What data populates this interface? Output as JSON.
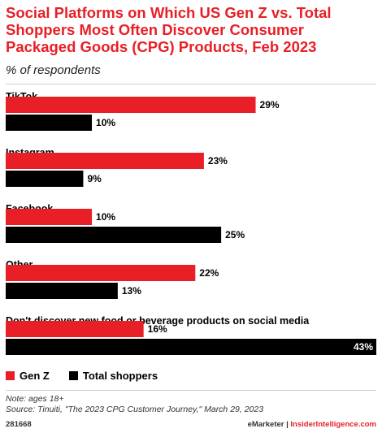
{
  "header": {
    "title": "Social Platforms on Which US Gen Z vs. Total Shoppers Most Often Discover Consumer Packaged Goods (CPG) Products, Feb 2023",
    "subtitle": "% of respondents"
  },
  "colors": {
    "gen_z": "#e81f26",
    "total": "#000000",
    "title": "#e81f26"
  },
  "chart_data": {
    "type": "bar",
    "orientation": "horizontal",
    "categories": [
      "TikTok",
      "Instagram",
      "Facebook",
      "Other",
      "Don't discover new food or beverage products on social media"
    ],
    "series": [
      {
        "name": "Gen Z",
        "values": [
          29,
          23,
          10,
          22,
          16
        ]
      },
      {
        "name": "Total shoppers",
        "values": [
          10,
          9,
          25,
          13,
          43
        ]
      }
    ],
    "value_suffix": "%",
    "xlim": [
      0,
      43
    ],
    "grid": false,
    "legend_position": "bottom-left"
  },
  "legend": {
    "gen_z_label": "Gen Z",
    "total_label": "Total shoppers"
  },
  "notes": {
    "note": "Note: ages 18+",
    "source": "Source: Tinuiti, \"The 2023 CPG Customer Journey,\" March 29, 2023"
  },
  "footer": {
    "chart_id": "281668",
    "brand_left": "eMarketer",
    "separator": " | ",
    "brand_right": "InsiderIntelligence.com"
  }
}
